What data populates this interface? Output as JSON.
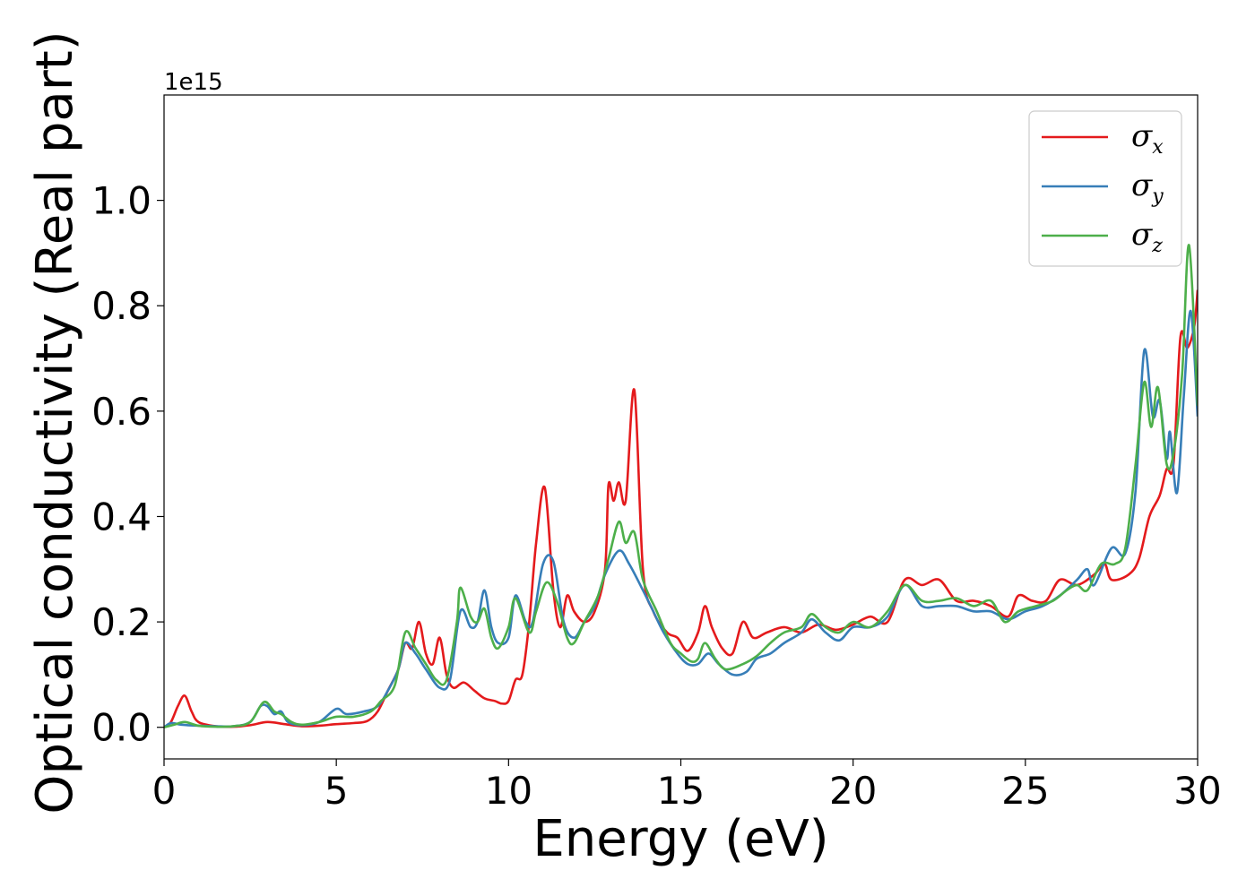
{
  "chart_data": {
    "type": "line",
    "xlabel": "Energy (eV)",
    "ylabel": "Optical conductivity (Real part)",
    "y_offset_text": "1e15",
    "xlim": [
      0,
      30
    ],
    "ylim": [
      -0.06,
      1.2
    ],
    "y_scale_note": "values in units of 1e15",
    "x_ticks": [
      0,
      5,
      10,
      15,
      20,
      25,
      30
    ],
    "x_tick_labels": [
      "0",
      "5",
      "10",
      "15",
      "20",
      "25",
      "30"
    ],
    "y_ticks": [
      0.0,
      0.2,
      0.4,
      0.6,
      0.8,
      1.0
    ],
    "y_tick_labels": [
      "0.0",
      "0.2",
      "0.4",
      "0.6",
      "0.8",
      "1.0"
    ],
    "grid": false,
    "legend_position": "top-right",
    "series": [
      {
        "name": "σ",
        "subscript": "x",
        "color": "#e41a1c",
        "points": [
          [
            0,
            0.0
          ],
          [
            0.2,
            0.01
          ],
          [
            0.4,
            0.04
          ],
          [
            0.6,
            0.06
          ],
          [
            0.8,
            0.03
          ],
          [
            1.0,
            0.01
          ],
          [
            1.5,
            0.002
          ],
          [
            2.0,
            0.001
          ],
          [
            2.5,
            0.004
          ],
          [
            3.0,
            0.01
          ],
          [
            3.5,
            0.006
          ],
          [
            4.0,
            0.002
          ],
          [
            4.5,
            0.003
          ],
          [
            5.0,
            0.006
          ],
          [
            5.5,
            0.008
          ],
          [
            5.9,
            0.012
          ],
          [
            6.2,
            0.03
          ],
          [
            6.5,
            0.07
          ],
          [
            6.8,
            0.11
          ],
          [
            7.0,
            0.16
          ],
          [
            7.2,
            0.15
          ],
          [
            7.4,
            0.2
          ],
          [
            7.6,
            0.14
          ],
          [
            7.8,
            0.12
          ],
          [
            8.0,
            0.17
          ],
          [
            8.2,
            0.1
          ],
          [
            8.4,
            0.075
          ],
          [
            8.7,
            0.085
          ],
          [
            9.0,
            0.07
          ],
          [
            9.3,
            0.055
          ],
          [
            9.6,
            0.05
          ],
          [
            9.8,
            0.045
          ],
          [
            10.0,
            0.05
          ],
          [
            10.2,
            0.09
          ],
          [
            10.4,
            0.1
          ],
          [
            10.6,
            0.2
          ],
          [
            10.8,
            0.35
          ],
          [
            11.05,
            0.455
          ],
          [
            11.3,
            0.26
          ],
          [
            11.5,
            0.19
          ],
          [
            11.7,
            0.25
          ],
          [
            11.9,
            0.22
          ],
          [
            12.2,
            0.2
          ],
          [
            12.5,
            0.22
          ],
          [
            12.8,
            0.3
          ],
          [
            12.9,
            0.46
          ],
          [
            13.05,
            0.43
          ],
          [
            13.2,
            0.465
          ],
          [
            13.4,
            0.43
          ],
          [
            13.65,
            0.64
          ],
          [
            13.9,
            0.3
          ],
          [
            14.2,
            0.22
          ],
          [
            14.6,
            0.18
          ],
          [
            14.9,
            0.17
          ],
          [
            15.2,
            0.145
          ],
          [
            15.5,
            0.18
          ],
          [
            15.7,
            0.23
          ],
          [
            15.9,
            0.19
          ],
          [
            16.2,
            0.15
          ],
          [
            16.5,
            0.14
          ],
          [
            16.8,
            0.2
          ],
          [
            17.1,
            0.17
          ],
          [
            17.5,
            0.18
          ],
          [
            18.0,
            0.19
          ],
          [
            18.5,
            0.18
          ],
          [
            19.0,
            0.195
          ],
          [
            19.5,
            0.185
          ],
          [
            20.0,
            0.195
          ],
          [
            20.5,
            0.21
          ],
          [
            21.0,
            0.2
          ],
          [
            21.5,
            0.28
          ],
          [
            22.0,
            0.27
          ],
          [
            22.5,
            0.28
          ],
          [
            23.0,
            0.24
          ],
          [
            23.5,
            0.24
          ],
          [
            24.0,
            0.23
          ],
          [
            24.5,
            0.21
          ],
          [
            24.8,
            0.25
          ],
          [
            25.2,
            0.24
          ],
          [
            25.6,
            0.24
          ],
          [
            26.0,
            0.28
          ],
          [
            26.5,
            0.27
          ],
          [
            27.0,
            0.29
          ],
          [
            27.3,
            0.31
          ],
          [
            27.5,
            0.28
          ],
          [
            28.0,
            0.29
          ],
          [
            28.3,
            0.32
          ],
          [
            28.6,
            0.4
          ],
          [
            28.9,
            0.44
          ],
          [
            29.1,
            0.49
          ],
          [
            29.3,
            0.5
          ],
          [
            29.5,
            0.74
          ],
          [
            29.7,
            0.72
          ],
          [
            29.9,
            0.76
          ],
          [
            30.0,
            0.83
          ]
        ]
      },
      {
        "name": "σ",
        "subscript": "y",
        "color": "#377eb8",
        "points": [
          [
            0,
            0.0
          ],
          [
            0.2,
            0.008
          ],
          [
            0.5,
            0.005
          ],
          [
            1.0,
            0.003
          ],
          [
            1.5,
            0.002
          ],
          [
            2.0,
            0.002
          ],
          [
            2.5,
            0.01
          ],
          [
            2.8,
            0.04
          ],
          [
            3.0,
            0.04
          ],
          [
            3.2,
            0.025
          ],
          [
            3.4,
            0.03
          ],
          [
            3.6,
            0.01
          ],
          [
            4.0,
            0.004
          ],
          [
            4.5,
            0.01
          ],
          [
            5.0,
            0.035
          ],
          [
            5.3,
            0.025
          ],
          [
            5.8,
            0.03
          ],
          [
            6.2,
            0.04
          ],
          [
            6.5,
            0.07
          ],
          [
            6.8,
            0.11
          ],
          [
            7.0,
            0.16
          ],
          [
            7.3,
            0.14
          ],
          [
            7.6,
            0.11
          ],
          [
            8.0,
            0.075
          ],
          [
            8.3,
            0.09
          ],
          [
            8.6,
            0.22
          ],
          [
            8.9,
            0.19
          ],
          [
            9.1,
            0.2
          ],
          [
            9.3,
            0.26
          ],
          [
            9.5,
            0.19
          ],
          [
            9.7,
            0.16
          ],
          [
            10.0,
            0.17
          ],
          [
            10.2,
            0.25
          ],
          [
            10.5,
            0.2
          ],
          [
            10.7,
            0.2
          ],
          [
            11.0,
            0.31
          ],
          [
            11.3,
            0.315
          ],
          [
            11.6,
            0.2
          ],
          [
            11.9,
            0.17
          ],
          [
            12.2,
            0.2
          ],
          [
            12.5,
            0.23
          ],
          [
            12.8,
            0.29
          ],
          [
            13.2,
            0.335
          ],
          [
            13.5,
            0.31
          ],
          [
            13.9,
            0.26
          ],
          [
            14.2,
            0.22
          ],
          [
            14.5,
            0.18
          ],
          [
            14.9,
            0.14
          ],
          [
            15.2,
            0.12
          ],
          [
            15.5,
            0.12
          ],
          [
            15.8,
            0.14
          ],
          [
            16.1,
            0.12
          ],
          [
            16.5,
            0.1
          ],
          [
            16.9,
            0.105
          ],
          [
            17.2,
            0.13
          ],
          [
            17.6,
            0.14
          ],
          [
            18.0,
            0.16
          ],
          [
            18.5,
            0.18
          ],
          [
            18.8,
            0.205
          ],
          [
            19.2,
            0.18
          ],
          [
            19.6,
            0.165
          ],
          [
            20.0,
            0.19
          ],
          [
            20.5,
            0.19
          ],
          [
            21.0,
            0.21
          ],
          [
            21.5,
            0.27
          ],
          [
            22.0,
            0.23
          ],
          [
            22.5,
            0.23
          ],
          [
            23.0,
            0.23
          ],
          [
            23.5,
            0.22
          ],
          [
            24.0,
            0.22
          ],
          [
            24.5,
            0.205
          ],
          [
            25.0,
            0.22
          ],
          [
            25.5,
            0.23
          ],
          [
            26.0,
            0.25
          ],
          [
            26.5,
            0.28
          ],
          [
            26.8,
            0.3
          ],
          [
            27.0,
            0.27
          ],
          [
            27.5,
            0.34
          ],
          [
            27.9,
            0.33
          ],
          [
            28.2,
            0.45
          ],
          [
            28.45,
            0.715
          ],
          [
            28.7,
            0.59
          ],
          [
            28.9,
            0.62
          ],
          [
            29.1,
            0.51
          ],
          [
            29.2,
            0.56
          ],
          [
            29.4,
            0.445
          ],
          [
            29.6,
            0.63
          ],
          [
            29.8,
            0.79
          ],
          [
            30.0,
            0.59
          ]
        ]
      },
      {
        "name": "σ",
        "subscript": "z",
        "color": "#4daf4a",
        "points": [
          [
            0,
            0.0
          ],
          [
            0.3,
            0.005
          ],
          [
            0.6,
            0.01
          ],
          [
            1.0,
            0.003
          ],
          [
            1.5,
            0.001
          ],
          [
            2.0,
            0.002
          ],
          [
            2.5,
            0.01
          ],
          [
            2.9,
            0.048
          ],
          [
            3.2,
            0.03
          ],
          [
            3.4,
            0.025
          ],
          [
            3.7,
            0.01
          ],
          [
            4.0,
            0.005
          ],
          [
            4.5,
            0.01
          ],
          [
            5.0,
            0.02
          ],
          [
            5.5,
            0.02
          ],
          [
            6.0,
            0.03
          ],
          [
            6.3,
            0.05
          ],
          [
            6.7,
            0.08
          ],
          [
            7.0,
            0.18
          ],
          [
            7.3,
            0.15
          ],
          [
            7.6,
            0.12
          ],
          [
            7.9,
            0.09
          ],
          [
            8.2,
            0.09
          ],
          [
            8.5,
            0.2
          ],
          [
            8.6,
            0.265
          ],
          [
            8.9,
            0.21
          ],
          [
            9.1,
            0.2
          ],
          [
            9.3,
            0.225
          ],
          [
            9.5,
            0.17
          ],
          [
            9.7,
            0.15
          ],
          [
            10.0,
            0.19
          ],
          [
            10.2,
            0.245
          ],
          [
            10.6,
            0.18
          ],
          [
            10.8,
            0.22
          ],
          [
            11.1,
            0.275
          ],
          [
            11.4,
            0.24
          ],
          [
            11.7,
            0.17
          ],
          [
            11.9,
            0.16
          ],
          [
            12.2,
            0.2
          ],
          [
            12.6,
            0.25
          ],
          [
            12.9,
            0.32
          ],
          [
            13.2,
            0.39
          ],
          [
            13.4,
            0.35
          ],
          [
            13.65,
            0.37
          ],
          [
            13.9,
            0.28
          ],
          [
            14.3,
            0.22
          ],
          [
            14.7,
            0.16
          ],
          [
            15.0,
            0.14
          ],
          [
            15.3,
            0.125
          ],
          [
            15.5,
            0.13
          ],
          [
            15.7,
            0.16
          ],
          [
            16.0,
            0.13
          ],
          [
            16.3,
            0.11
          ],
          [
            16.8,
            0.12
          ],
          [
            17.2,
            0.135
          ],
          [
            17.6,
            0.16
          ],
          [
            18.0,
            0.18
          ],
          [
            18.5,
            0.19
          ],
          [
            18.8,
            0.215
          ],
          [
            19.2,
            0.19
          ],
          [
            19.6,
            0.18
          ],
          [
            20.0,
            0.2
          ],
          [
            20.5,
            0.19
          ],
          [
            21.0,
            0.22
          ],
          [
            21.5,
            0.27
          ],
          [
            22.0,
            0.24
          ],
          [
            22.5,
            0.24
          ],
          [
            23.0,
            0.245
          ],
          [
            23.5,
            0.23
          ],
          [
            24.0,
            0.24
          ],
          [
            24.4,
            0.2
          ],
          [
            24.8,
            0.22
          ],
          [
            25.3,
            0.23
          ],
          [
            25.8,
            0.24
          ],
          [
            26.2,
            0.26
          ],
          [
            26.5,
            0.27
          ],
          [
            26.8,
            0.26
          ],
          [
            27.2,
            0.31
          ],
          [
            27.6,
            0.31
          ],
          [
            27.9,
            0.34
          ],
          [
            28.2,
            0.5
          ],
          [
            28.45,
            0.655
          ],
          [
            28.65,
            0.57
          ],
          [
            28.85,
            0.645
          ],
          [
            29.1,
            0.5
          ],
          [
            29.3,
            0.52
          ],
          [
            29.55,
            0.67
          ],
          [
            29.75,
            0.915
          ],
          [
            30.0,
            0.61
          ]
        ]
      }
    ]
  }
}
